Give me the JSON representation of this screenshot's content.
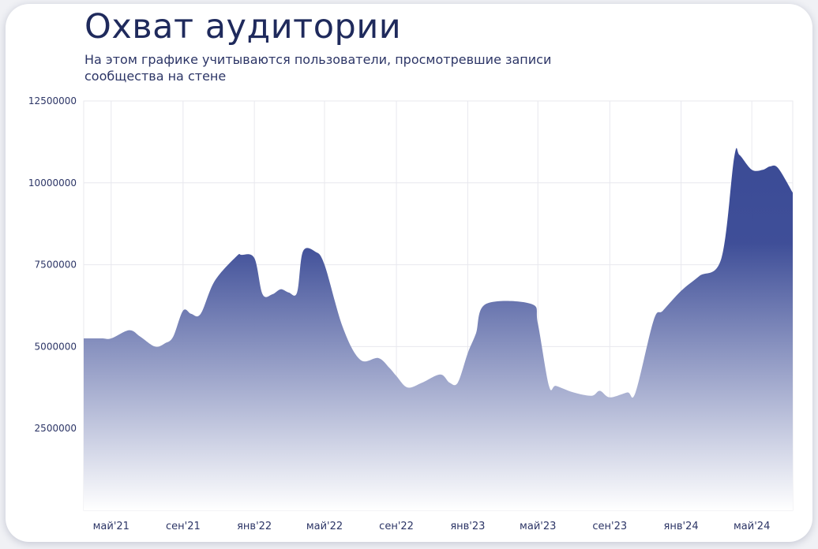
{
  "title": "Охват аудитории",
  "subtitle": "На этом графике учитываются пользователи, просмотревшие записи сообщества на стене",
  "colors": {
    "title": "#1f2a5c",
    "area_top": "#3b4b96",
    "area_bottom": "#ffffff",
    "grid": "#e8e8ee",
    "tick_text": "#2c3566"
  },
  "chart_data": {
    "type": "area",
    "title": "Охват аудитории",
    "xlabel": "",
    "ylabel": "",
    "ylim": [
      0,
      12500000
    ],
    "yticks": [
      2500000,
      5000000,
      7500000,
      10000000,
      12500000
    ],
    "ytick_labels": [
      "2500000",
      "5000000",
      "7500000",
      "10000000",
      "12500000"
    ],
    "xlim": [
      "2021-03-15",
      "2024-07-10"
    ],
    "xticks": [
      "2021-05-01",
      "2021-09-01",
      "2022-01-01",
      "2022-05-01",
      "2022-09-01",
      "2023-01-01",
      "2023-05-01",
      "2023-09-01",
      "2024-01-01",
      "2024-05-01"
    ],
    "xtick_labels": [
      "май'21",
      "сен'21",
      "янв'22",
      "май'22",
      "сен'22",
      "янв'23",
      "май'23",
      "сен'23",
      "янв'24",
      "май'24"
    ],
    "grid": true,
    "legend": "none",
    "series": [
      {
        "x": [
          "2021-03-15",
          "2021-04-15",
          "2021-05-01",
          "2021-06-01",
          "2021-06-20",
          "2021-07-15",
          "2021-08-01",
          "2021-08-15",
          "2021-09-01",
          "2021-09-15",
          "2021-10-01",
          "2021-10-25",
          "2021-12-01",
          "2021-12-10",
          "2022-01-01",
          "2022-01-15",
          "2022-02-01",
          "2022-02-15",
          "2022-03-01",
          "2022-03-15",
          "2022-03-25",
          "2022-04-15",
          "2022-05-01",
          "2022-06-01",
          "2022-07-01",
          "2022-08-01",
          "2022-08-20",
          "2022-09-01",
          "2022-09-20",
          "2022-10-15",
          "2022-11-15",
          "2022-12-01",
          "2022-12-15",
          "2023-01-01",
          "2023-01-15",
          "2023-02-01",
          "2023-04-20",
          "2023-05-01",
          "2023-05-20",
          "2023-06-01",
          "2023-07-01",
          "2023-08-01",
          "2023-08-15",
          "2023-09-01",
          "2023-10-01",
          "2023-10-15",
          "2023-11-15",
          "2023-12-01",
          "2024-01-01",
          "2024-02-01",
          "2024-03-10",
          "2024-04-01",
          "2024-04-10",
          "2024-05-01",
          "2024-05-20",
          "2024-06-01",
          "2024-06-15",
          "2024-07-10"
        ],
        "y": [
          5250000,
          5250000,
          5250000,
          5500000,
          5300000,
          5000000,
          5100000,
          5300000,
          6100000,
          6000000,
          6000000,
          7000000,
          7750000,
          7800000,
          7700000,
          6600000,
          6600000,
          6750000,
          6650000,
          6650000,
          7900000,
          7900000,
          7500000,
          5600000,
          4600000,
          4650000,
          4350000,
          4100000,
          3750000,
          3900000,
          4150000,
          3900000,
          3900000,
          4800000,
          5400000,
          6300000,
          6300000,
          5700000,
          3800000,
          3800000,
          3600000,
          3500000,
          3650000,
          3450000,
          3600000,
          3600000,
          5800000,
          6100000,
          6700000,
          7150000,
          7700000,
          10800000,
          10850000,
          10400000,
          10400000,
          10500000,
          10450000,
          9700000
        ]
      }
    ]
  }
}
